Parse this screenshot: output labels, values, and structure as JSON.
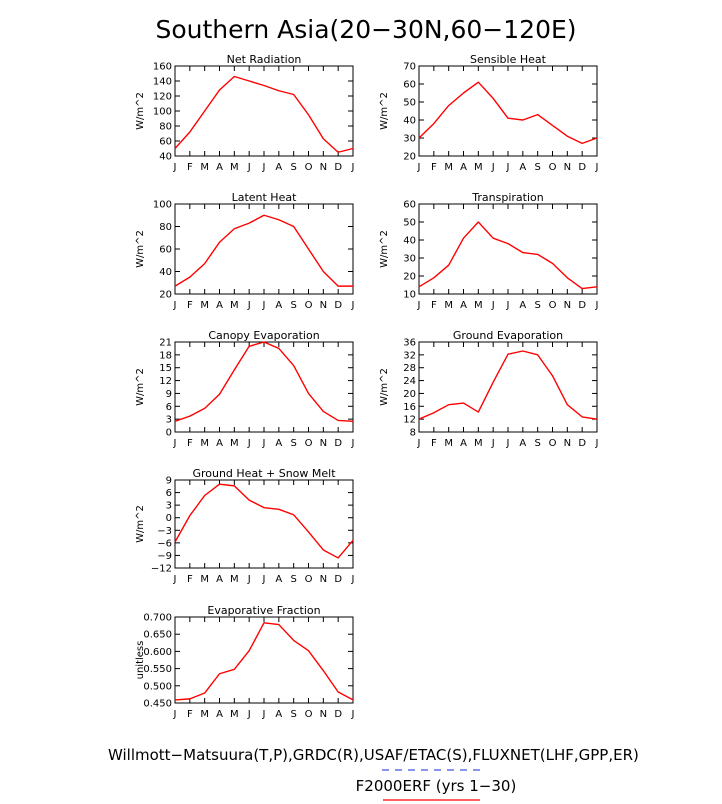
{
  "figure": {
    "title": "Southern Asia(20−30N,60−120E)",
    "footer_line1": "Willmott−Matsuura(T,P),GRDC(R),USAF/ETAC(S),FLUXNET(LHF,GPP,ER)",
    "footer_line2": "F2000ERF (yrs 1−30)",
    "line_color": "#ff0000",
    "underline_blue": "#4455dd",
    "underline_red": "#ff0000",
    "month_labels": [
      "J",
      "F",
      "M",
      "A",
      "M",
      "J",
      "J",
      "A",
      "S",
      "O",
      "N",
      "D",
      "J"
    ]
  },
  "chart_data": [
    {
      "type": "line",
      "title": "Net Radiation",
      "ylabel": "W/m^2",
      "x": [
        "J",
        "F",
        "M",
        "A",
        "M",
        "J",
        "J",
        "A",
        "S",
        "O",
        "N",
        "D",
        "J"
      ],
      "series": [
        {
          "values": [
            50,
            72,
            100,
            128,
            146,
            140,
            134,
            127,
            122,
            95,
            63,
            45,
            50
          ]
        }
      ],
      "ylim": [
        40,
        160
      ],
      "yticks": [
        40,
        60,
        80,
        100,
        120,
        140,
        160
      ],
      "ytick_labels": [
        "40",
        "60",
        "80",
        "100",
        "120",
        "140",
        "160"
      ]
    },
    {
      "type": "line",
      "title": "Sensible Heat",
      "ylabel": "W/m^2",
      "x": [
        "J",
        "F",
        "M",
        "A",
        "M",
        "J",
        "J",
        "A",
        "S",
        "O",
        "N",
        "D",
        "J"
      ],
      "series": [
        {
          "values": [
            30,
            38,
            48,
            55,
            61,
            52,
            41,
            40,
            43,
            37,
            31,
            27,
            30
          ]
        }
      ],
      "ylim": [
        20,
        70
      ],
      "yticks": [
        20,
        30,
        40,
        50,
        60,
        70
      ],
      "ytick_labels": [
        "20",
        "30",
        "40",
        "50",
        "60",
        "70"
      ]
    },
    {
      "type": "line",
      "title": "Latent Heat",
      "ylabel": "W/m^2",
      "x": [
        "J",
        "F",
        "M",
        "A",
        "M",
        "J",
        "J",
        "A",
        "S",
        "O",
        "N",
        "D",
        "J"
      ],
      "series": [
        {
          "values": [
            27,
            35,
            47,
            66,
            78,
            83,
            90,
            86,
            80,
            60,
            40,
            27,
            27
          ]
        }
      ],
      "ylim": [
        20,
        100
      ],
      "yticks": [
        20,
        40,
        60,
        80,
        100
      ],
      "ytick_labels": [
        "20",
        "40",
        "60",
        "80",
        "100"
      ]
    },
    {
      "type": "line",
      "title": "Transpiration",
      "ylabel": "W/m^2",
      "x": [
        "J",
        "F",
        "M",
        "A",
        "M",
        "J",
        "J",
        "A",
        "S",
        "O",
        "N",
        "D",
        "J"
      ],
      "series": [
        {
          "values": [
            14,
            19,
            26,
            41,
            50,
            41,
            38,
            33,
            32,
            27,
            19,
            13,
            14
          ]
        }
      ],
      "ylim": [
        10,
        60
      ],
      "yticks": [
        10,
        20,
        30,
        40,
        50,
        60
      ],
      "ytick_labels": [
        "10",
        "20",
        "30",
        "40",
        "50",
        "60"
      ]
    },
    {
      "type": "line",
      "title": "Canopy Evaporation",
      "ylabel": "W/m^2",
      "x": [
        "J",
        "F",
        "M",
        "A",
        "M",
        "J",
        "J",
        "A",
        "S",
        "O",
        "N",
        "D",
        "J"
      ],
      "series": [
        {
          "values": [
            2.5,
            3.7,
            5.5,
            8.8,
            14.5,
            20,
            21,
            19.5,
            15.5,
            9,
            4.8,
            2.7,
            2.5
          ]
        }
      ],
      "ylim": [
        0,
        21
      ],
      "yticks": [
        0,
        3,
        6,
        9,
        12,
        15,
        18,
        21
      ],
      "ytick_labels": [
        "0",
        "3",
        "6",
        "9",
        "12",
        "15",
        "18",
        "21"
      ]
    },
    {
      "type": "line",
      "title": "Ground Evaporation",
      "ylabel": "W/m^2",
      "x": [
        "J",
        "F",
        "M",
        "A",
        "M",
        "J",
        "J",
        "A",
        "S",
        "O",
        "N",
        "D",
        "J"
      ],
      "series": [
        {
          "values": [
            12,
            14,
            16.5,
            17,
            14.2,
            23.5,
            32.2,
            33.2,
            32,
            25.5,
            16.5,
            12.7,
            12
          ]
        }
      ],
      "ylim": [
        8,
        36
      ],
      "yticks": [
        8,
        12,
        16,
        20,
        24,
        28,
        32,
        36
      ],
      "ytick_labels": [
        "8",
        "12",
        "16",
        "20",
        "24",
        "28",
        "32",
        "36"
      ]
    },
    {
      "type": "line",
      "title": "Ground Heat + Snow Melt",
      "ylabel": "W/m^2",
      "x": [
        "J",
        "F",
        "M",
        "A",
        "M",
        "J",
        "J",
        "A",
        "S",
        "O",
        "N",
        "D",
        "J"
      ],
      "series": [
        {
          "values": [
            -5.8,
            0.5,
            5.3,
            8,
            7.6,
            4.2,
            2.4,
            2.0,
            0.7,
            -3.4,
            -7.7,
            -9.6,
            -5.4
          ]
        }
      ],
      "ylim": [
        -12,
        9
      ],
      "yticks": [
        -12,
        -9,
        -6,
        -3,
        0,
        3,
        6,
        9
      ],
      "ytick_labels": [
        "−12",
        "−9",
        "−6",
        "−3",
        "0",
        "3",
        "6",
        "9"
      ]
    },
    {
      "type": "line",
      "title": "Evaporative Fraction",
      "ylabel": "unitless",
      "x": [
        "J",
        "F",
        "M",
        "A",
        "M",
        "J",
        "J",
        "A",
        "S",
        "O",
        "N",
        "D",
        "J"
      ],
      "series": [
        {
          "values": [
            0.459,
            0.462,
            0.479,
            0.535,
            0.548,
            0.602,
            0.683,
            0.678,
            0.632,
            0.602,
            0.544,
            0.482,
            0.459
          ]
        }
      ],
      "ylim": [
        0.45,
        0.7
      ],
      "yticks": [
        0.45,
        0.5,
        0.55,
        0.6,
        0.65,
        0.7
      ],
      "ytick_labels": [
        "0.450",
        "0.500",
        "0.550",
        "0.600",
        "0.650",
        "0.700"
      ]
    }
  ]
}
